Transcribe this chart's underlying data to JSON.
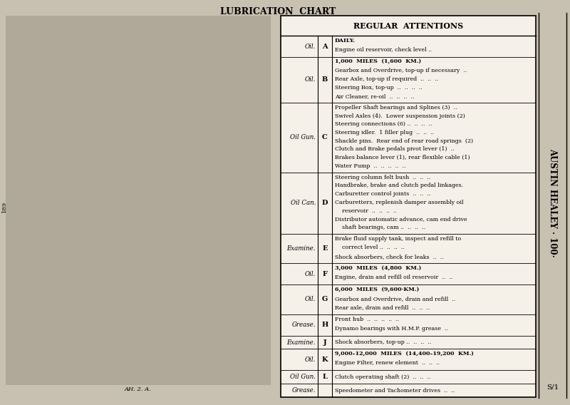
{
  "title": "LUBRICATION  CHART",
  "table_header": "REGULAR  ATTENTIONS",
  "sidebar_text": "AUSTIN HEALEY · 100·",
  "page_num": "S/1",
  "page_num_left": "189",
  "diagram_caption": "AH. 2. A.",
  "bg_color": "#c8c0b0",
  "table_bg": "#f5f0e8",
  "rows": [
    {
      "col1": "Oil.",
      "col2": "A",
      "col3_lines": [
        {
          "text": "DAILY.",
          "bold": true
        },
        {
          "text": "Engine oil reservoir, check level ..",
          "bold": false
        }
      ]
    },
    {
      "col1": "Oil.",
      "col2": "B",
      "col3_lines": [
        {
          "text": "1,000  MILES  (1,600  KM.)",
          "bold": true
        },
        {
          "text": "Gearbox and Overdrive, top-up if necessary  ..",
          "bold": false
        },
        {
          "text": "Rear Axle, top-up if required  ..  ..  ..",
          "bold": false
        },
        {
          "text": "Steering Box, top-up  ..  ..  ..  ..",
          "bold": false
        },
        {
          "text": "Air Cleaner, re-oil  ..  ..  ..  ..",
          "bold": false
        }
      ]
    },
    {
      "col1": "Oil Gun.",
      "col2": "C",
      "col3_lines": [
        {
          "text": "Propeller Shaft bearings and Splines (3)  ..",
          "bold": false
        },
        {
          "text": "Swivel Axles (4).  Lower suspension joints (2)",
          "bold": false
        },
        {
          "text": "Steering connections (6) ..  ..  ..  ..",
          "bold": false
        },
        {
          "text": "Steering idler.  1 filler plug  ..  ..  ..",
          "bold": false
        },
        {
          "text": "Shackle pins.  Rear end of rear road springs  (2)",
          "bold": false
        },
        {
          "text": "Clutch and Brake pedals pivot lever (1)  ..",
          "bold": false
        },
        {
          "text": "Brakes balance lever (1), rear flexible cable (1)",
          "bold": false
        },
        {
          "text": "Water Pump  ..  ..  ..  ..  ..",
          "bold": false
        }
      ]
    },
    {
      "col1": "Oil Can.",
      "col2": "D",
      "col3_lines": [
        {
          "text": "Steering column felt bush  ..  ..  ..",
          "bold": false
        },
        {
          "text": "Handbrake, brake and clutch pedal linkages.",
          "bold": false
        },
        {
          "text": "Carburetter control joints  ..  ..  ..",
          "bold": false
        },
        {
          "text": "Carburetters, replenish damper assembly oil",
          "bold": false
        },
        {
          "text": "    reservoir  ..  ..  ..  ..",
          "bold": false
        },
        {
          "text": "Distributor automatic advance, cam end drive",
          "bold": false
        },
        {
          "text": "    shaft bearings, cam ..  ..  ..  ..",
          "bold": false
        }
      ]
    },
    {
      "col1": "Examine.",
      "col2": "E",
      "col3_lines": [
        {
          "text": "Brake fluid supply tank, inspect and refill to",
          "bold": false
        },
        {
          "text": "    correct level ..  ..  ..  ..",
          "bold": false
        },
        {
          "text": "Shock absorbers, check for leaks  ..  ..",
          "bold": false
        }
      ]
    },
    {
      "col1": "Oil.",
      "col2": "F",
      "col3_lines": [
        {
          "text": "3,000  MILES  (4,800  KM.)",
          "bold": true
        },
        {
          "text": "Engine, drain and refill oil reservoir  ..  ..",
          "bold": false
        }
      ]
    },
    {
      "col1": "Oil.",
      "col2": "G",
      "col3_lines": [
        {
          "text": "6,000  MILES  (9,600·KM.)",
          "bold": true
        },
        {
          "text": "Gearbox and Overdrive, drain and refill  ..",
          "bold": false
        },
        {
          "text": "Rear axle, drain and refill  ..  ..  ..",
          "bold": false
        }
      ]
    },
    {
      "col1": "Grease.",
      "col2": "H",
      "col3_lines": [
        {
          "text": "Front hub  ..  ..  ..  ..  ..",
          "bold": false
        },
        {
          "text": "Dynamo bearings with H.M.P. grease  ..",
          "bold": false
        }
      ]
    },
    {
      "col1": "Examine.",
      "col2": "J",
      "col3_lines": [
        {
          "text": "Shock absorbers, top-up ..  ..  ..  ..",
          "bold": false
        }
      ]
    },
    {
      "col1": "Oil.",
      "col2": "K",
      "col3_lines": [
        {
          "text": "9,000–12,000  MILES  (14,400–19,200  KM.)",
          "bold": true
        },
        {
          "text": "Engine Filter, renew element  ..  ..  ..",
          "bold": false
        }
      ]
    },
    {
      "col1": "Oil Gun.",
      "col2": "L",
      "col3_lines": [
        {
          "text": "Clutch operating shaft (2)  ..  ..  ..",
          "bold": false
        }
      ]
    },
    {
      "col1": "Grease.",
      "col2": "",
      "col3_lines": [
        {
          "text": "Speedometer and Tachometer drives  ..  ..",
          "bold": false
        }
      ]
    }
  ]
}
